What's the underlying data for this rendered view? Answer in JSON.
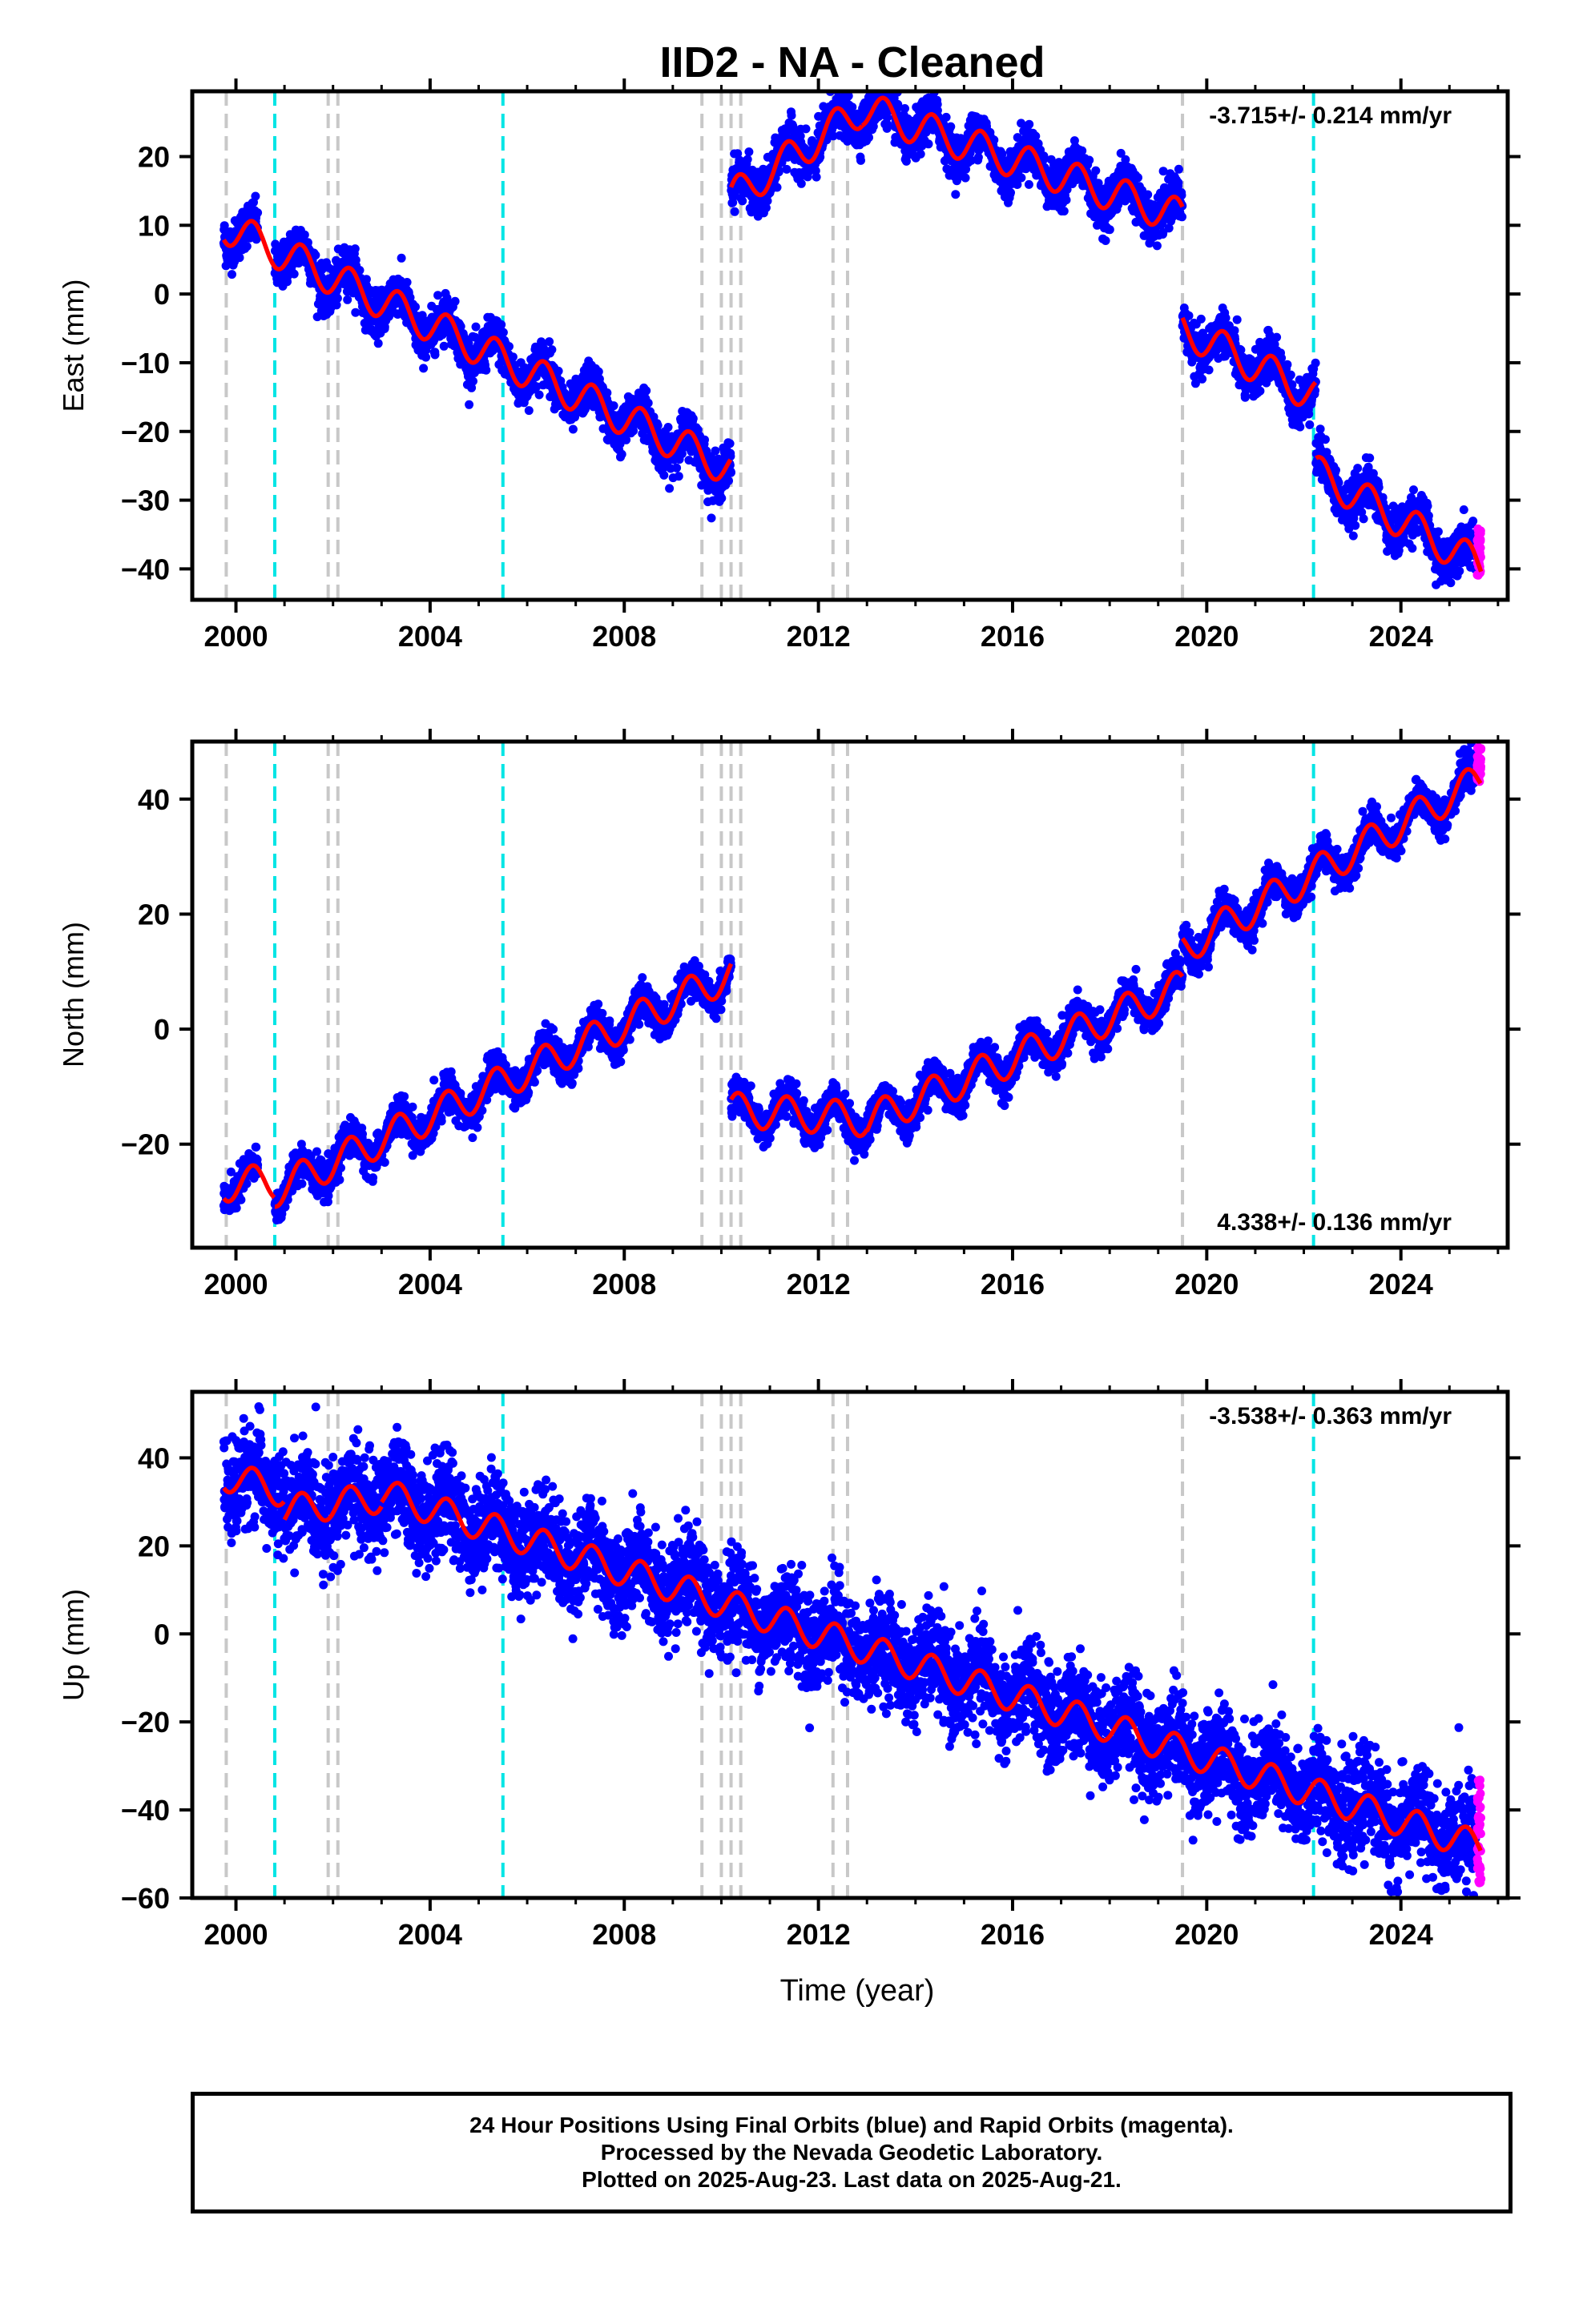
{
  "title": "IID2  - NA - Cleaned",
  "xlabel": "Time (year)",
  "caption": {
    "line1": "24 Hour Positions Using Final Orbits (blue) and Rapid Orbits (magenta).",
    "line2": "Processed by the Nevada Geodetic Laboratory.",
    "line3": "Plotted on 2025-Aug-23. Last data on 2025-Aug-21."
  },
  "colors": {
    "final_orbits": "#0000ff",
    "rapid_orbits": "#ff00ff",
    "model": "#ff0000",
    "equipment_change": "#c8c8c8",
    "earthquake": "#00e5e5"
  },
  "chart_data": [
    {
      "type": "scatter",
      "component": "East",
      "ylabel": "East (mm)",
      "rate_label": "-3.715+/- 0.214 mm/yr",
      "rate_label_position": "top-right",
      "xlim": [
        1999.1,
        2026.2
      ],
      "ylim": [
        -44.5,
        29.5
      ],
      "xticks": [
        2000,
        2004,
        2008,
        2012,
        2016,
        2020,
        2024
      ],
      "yticks": [
        -40,
        -30,
        -20,
        -10,
        0,
        10,
        20
      ],
      "gray_lines": [
        1999.8,
        2001.9,
        2002.1,
        2009.6,
        2010.0,
        2010.2,
        2010.4,
        2012.3,
        2012.6,
        2019.5
      ],
      "cyan_lines": [
        2000.8,
        2005.5,
        2022.2
      ],
      "trend_segments": [
        {
          "start": 1999.75,
          "end": 2010.2,
          "y0": 10,
          "slope": -3.4
        },
        {
          "start": 2010.2,
          "end": 2012.9,
          "y0": 14,
          "slope": 4.8
        },
        {
          "start": 2012.9,
          "end": 2019.5,
          "y0": 27,
          "slope": -2.4
        },
        {
          "start": 2019.5,
          "end": 2022.25,
          "y0": -5,
          "slope": -3.6
        },
        {
          "start": 2022.25,
          "end": 2025.65,
          "y0": -26,
          "slope": -4.0
        }
      ],
      "seasonal_amplitude": 2.6,
      "noise_sd": 1.6,
      "rapid_range": [
        -41,
        -34
      ]
    },
    {
      "type": "scatter",
      "component": "North",
      "ylabel": "North (mm)",
      "rate_label": "4.338+/- 0.136 mm/yr",
      "rate_label_position": "bottom-right",
      "xlim": [
        1999.1,
        2026.2
      ],
      "ylim": [
        -38,
        50
      ],
      "xticks": [
        2000,
        2004,
        2008,
        2012,
        2016,
        2020,
        2024
      ],
      "yticks": [
        -20,
        0,
        20,
        40
      ],
      "gray_lines": [
        1999.8,
        2001.9,
        2002.1,
        2009.6,
        2010.0,
        2010.2,
        2010.4,
        2012.3,
        2012.6,
        2019.5
      ],
      "cyan_lines": [
        2000.8,
        2005.5,
        2022.2
      ],
      "trend_segments": [
        {
          "start": 1999.75,
          "end": 2000.8,
          "y0": -27,
          "slope": 0.5
        },
        {
          "start": 2000.8,
          "end": 2010.2,
          "y0": -28,
          "slope": 4.0
        },
        {
          "start": 2010.2,
          "end": 2013.0,
          "y0": -14,
          "slope": -0.6
        },
        {
          "start": 2013.0,
          "end": 2019.5,
          "y0": -16,
          "slope": 3.6
        },
        {
          "start": 2019.5,
          "end": 2025.65,
          "y0": 14,
          "slope": 4.8
        }
      ],
      "seasonal_amplitude": 3.0,
      "noise_sd": 1.5,
      "rapid_range": [
        43,
        49
      ]
    },
    {
      "type": "scatter",
      "component": "Up",
      "ylabel": "Up (mm)",
      "rate_label": "-3.538+/- 0.363 mm/yr",
      "rate_label_position": "top-right",
      "xlim": [
        1999.1,
        2026.2
      ],
      "ylim": [
        -60,
        55
      ],
      "xticks": [
        2000,
        2004,
        2008,
        2012,
        2016,
        2020,
        2024
      ],
      "yticks": [
        -60,
        -40,
        -20,
        0,
        20,
        40
      ],
      "gray_lines": [
        1999.8,
        2001.9,
        2002.1,
        2009.6,
        2010.0,
        2010.2,
        2010.4,
        2012.3,
        2012.6,
        2019.5
      ],
      "cyan_lines": [
        2000.8,
        2005.5,
        2022.2
      ],
      "trend_segments": [
        {
          "start": 1999.75,
          "end": 2001.0,
          "y0": 36,
          "slope": -3.0
        },
        {
          "start": 2001.0,
          "end": 2003.0,
          "y0": 28,
          "slope": 1.5
        },
        {
          "start": 2003.0,
          "end": 2025.65,
          "y0": 32,
          "slope": -3.55
        }
      ],
      "seasonal_amplitude": 3.5,
      "noise_sd": 5.5,
      "rapid_range": [
        -57,
        -33
      ]
    }
  ]
}
